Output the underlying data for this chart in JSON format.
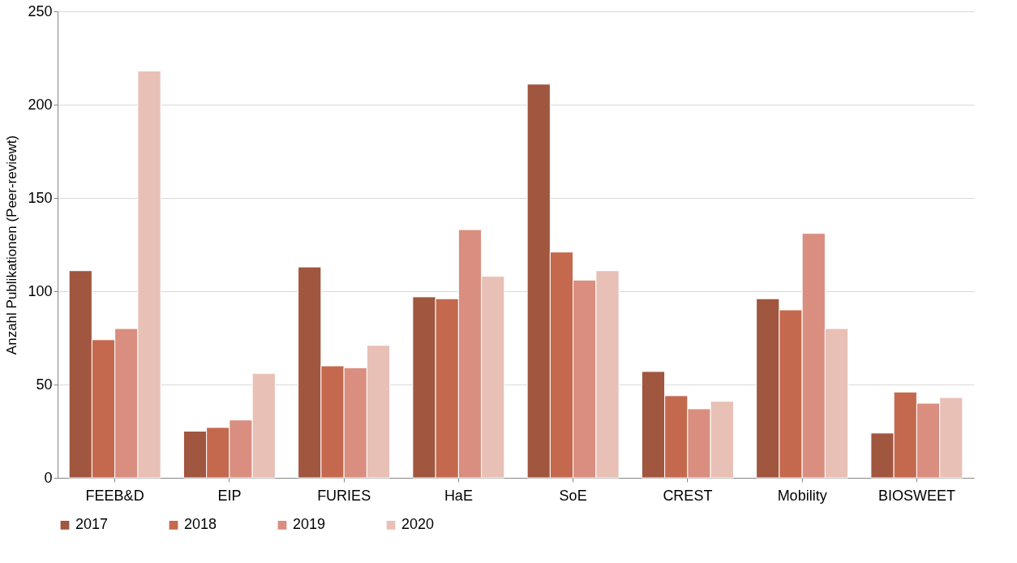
{
  "chart_data": {
    "type": "bar",
    "ylabel": "Anzahl Publikationen (Peer-reviewt)",
    "categories": [
      "FEEB&D",
      "EIP",
      "FURIES",
      "HaE",
      "SoE",
      "CREST",
      "Mobility",
      "BIOSWEET"
    ],
    "series": [
      {
        "name": "2017",
        "color": "#a0563f",
        "values": [
          111,
          25,
          113,
          97,
          211,
          57,
          96,
          24
        ]
      },
      {
        "name": "2018",
        "color": "#c4694d",
        "values": [
          74,
          27,
          60,
          96,
          121,
          44,
          90,
          46
        ]
      },
      {
        "name": "2019",
        "color": "#d98e80",
        "values": [
          80,
          31,
          59,
          133,
          106,
          37,
          131,
          40
        ]
      },
      {
        "name": "2020",
        "color": "#e8c0b6",
        "values": [
          218,
          56,
          71,
          108,
          111,
          41,
          80,
          43
        ]
      }
    ],
    "ylim": [
      0,
      250
    ],
    "yticks": [
      0,
      50,
      100,
      150,
      200,
      250
    ],
    "grid": "y",
    "legend": "bottom"
  }
}
